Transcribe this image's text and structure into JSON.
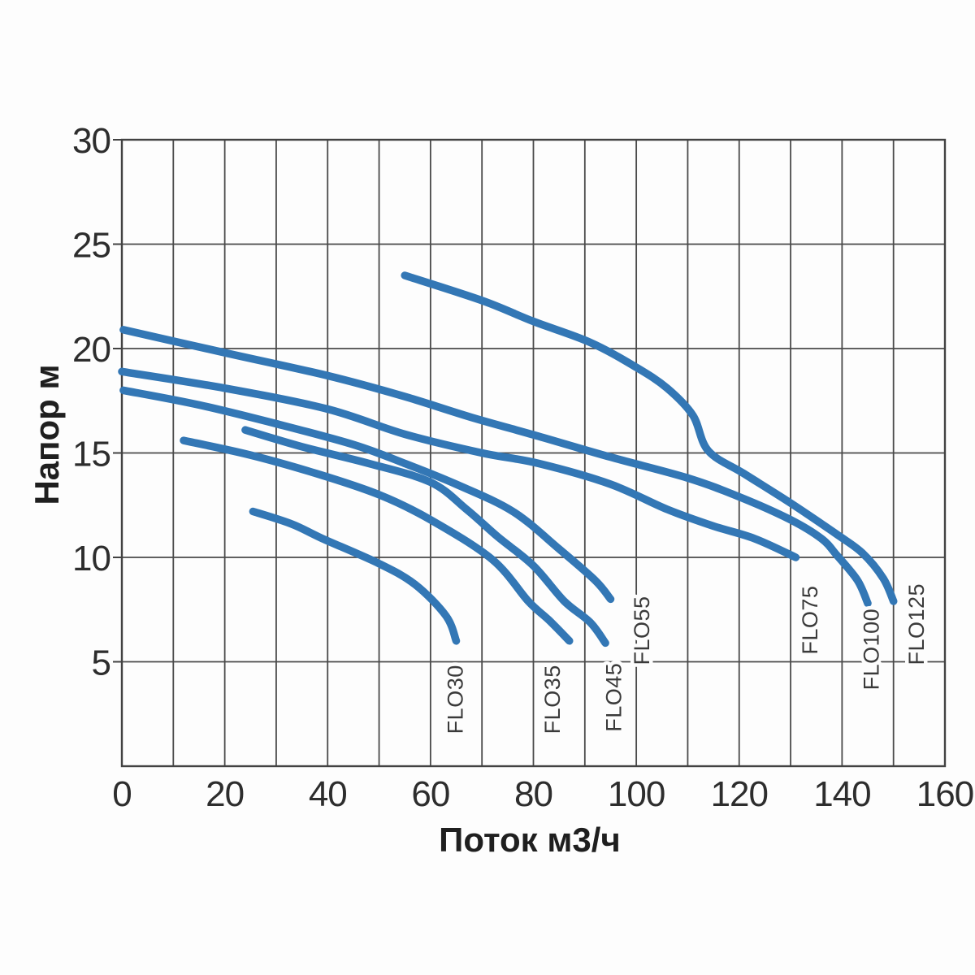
{
  "chart_data": {
    "type": "line",
    "xlabel": "Поток м3/ч",
    "ylabel": "Напор м",
    "xlim": [
      0,
      160
    ],
    "ylim": [
      0,
      30
    ],
    "x_ticks": [
      0,
      20,
      40,
      60,
      80,
      100,
      120,
      140,
      160
    ],
    "y_ticks": [
      30,
      25,
      20,
      15,
      10,
      5
    ],
    "x_grid_step": 10,
    "y_grid_step": 5,
    "grid": true,
    "legend_position": "rotated-labels-at-curve-ends",
    "colors": {
      "curve": "#3377b5",
      "grid": "#4a4a4a",
      "tick_text": "#2d2d2d",
      "curve_label_text": "#3a3a3a"
    },
    "series": [
      {
        "name": "FLO30",
        "points": [
          [
            25.5,
            12.2
          ],
          [
            33,
            11.6
          ],
          [
            39,
            10.9
          ],
          [
            50,
            9.7
          ],
          [
            57,
            8.7
          ],
          [
            63,
            7.2
          ],
          [
            65,
            6.0
          ]
        ],
        "label": {
          "q": 64.8,
          "h": 3.2
        }
      },
      {
        "name": "FLO35",
        "points": [
          [
            12,
            15.6
          ],
          [
            25,
            14.9
          ],
          [
            38,
            14.0
          ],
          [
            50,
            13.0
          ],
          [
            60,
            11.8
          ],
          [
            72,
            9.9
          ],
          [
            79,
            7.9
          ],
          [
            83,
            7.0
          ],
          [
            87,
            6.0
          ]
        ],
        "label": {
          "q": 83.7,
          "h": 3.2
        }
      },
      {
        "name": "FLO45",
        "points": [
          [
            24,
            16.1
          ],
          [
            35,
            15.3
          ],
          [
            48,
            14.5
          ],
          [
            60,
            13.6
          ],
          [
            67,
            12.3
          ],
          [
            73,
            11.0
          ],
          [
            80,
            9.6
          ],
          [
            86,
            7.9
          ],
          [
            91,
            6.9
          ],
          [
            94,
            5.9
          ]
        ],
        "label": {
          "q": 95.6,
          "h": 3.3
        }
      },
      {
        "name": "FLO55",
        "points": [
          [
            0.3,
            18.0
          ],
          [
            15,
            17.3
          ],
          [
            30,
            16.4
          ],
          [
            45,
            15.4
          ],
          [
            55,
            14.5
          ],
          [
            65,
            13.5
          ],
          [
            76,
            12.2
          ],
          [
            85,
            10.4
          ],
          [
            92,
            8.9
          ],
          [
            95,
            8.0
          ]
        ],
        "label": {
          "q": 101.1,
          "h": 6.5
        }
      },
      {
        "name": "FLO75",
        "points": [
          [
            0,
            18.9
          ],
          [
            20,
            18.1
          ],
          [
            40,
            17.1
          ],
          [
            55,
            15.9
          ],
          [
            70,
            15.0
          ],
          [
            81,
            14.5
          ],
          [
            95,
            13.5
          ],
          [
            106,
            12.3
          ],
          [
            115,
            11.5
          ],
          [
            123,
            10.9
          ],
          [
            131,
            10.0
          ]
        ],
        "label": {
          "q": 133.8,
          "h": 7.0
        }
      },
      {
        "name": "FLO100",
        "points": [
          [
            0.3,
            20.9
          ],
          [
            20,
            19.8
          ],
          [
            40,
            18.7
          ],
          [
            55,
            17.7
          ],
          [
            68,
            16.7
          ],
          [
            81,
            15.8
          ],
          [
            95,
            14.8
          ],
          [
            110,
            13.8
          ],
          [
            120,
            12.9
          ],
          [
            130,
            11.8
          ],
          [
            136,
            10.9
          ],
          [
            139,
            10.1
          ],
          [
            143,
            8.9
          ],
          [
            145,
            7.8
          ]
        ],
        "label": {
          "q": 145.7,
          "h": 5.6
        }
      },
      {
        "name": "FLO125",
        "points": [
          [
            55,
            23.5
          ],
          [
            70,
            22.3
          ],
          [
            80,
            21.3
          ],
          [
            91,
            20.3
          ],
          [
            100,
            19.1
          ],
          [
            106,
            18.1
          ],
          [
            111,
            16.8
          ],
          [
            114,
            15.1
          ],
          [
            121,
            14.0
          ],
          [
            130,
            12.6
          ],
          [
            139,
            11.1
          ],
          [
            144,
            10.2
          ],
          [
            148,
            9.0
          ],
          [
            150,
            7.9
          ]
        ],
        "label": {
          "q": 154.5,
          "h": 6.8
        }
      }
    ]
  }
}
